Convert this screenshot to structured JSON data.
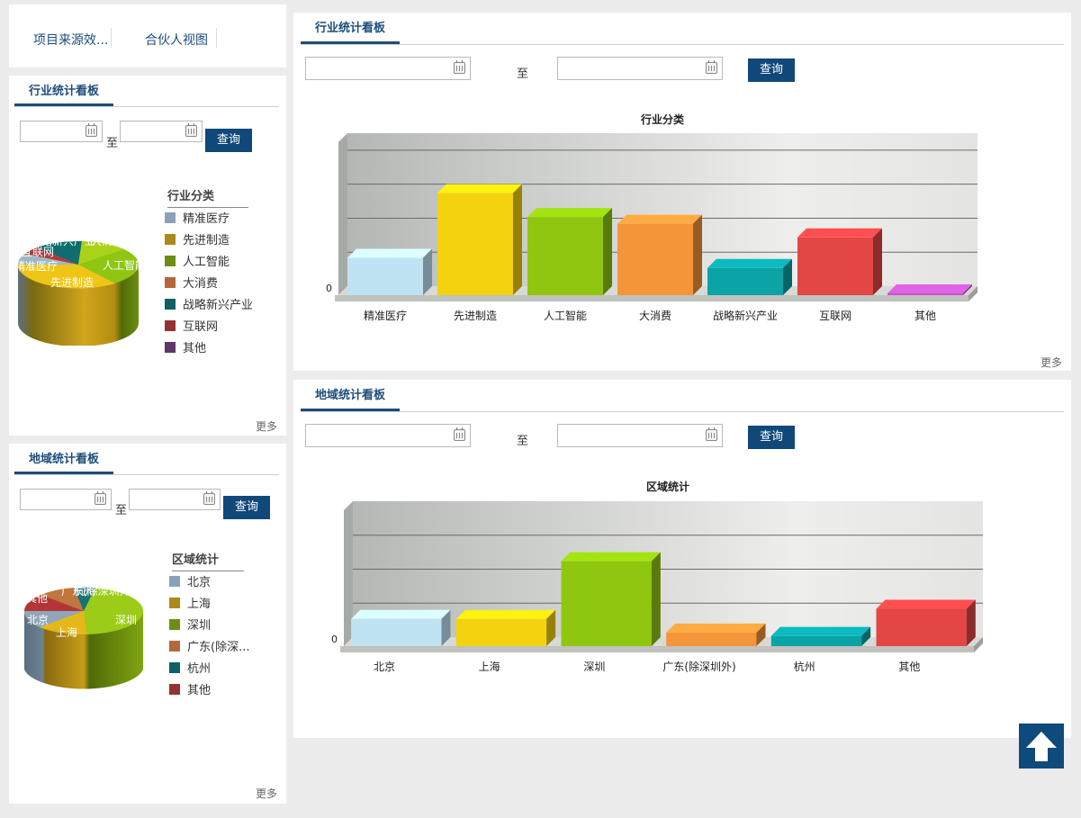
{
  "top_links": [
    "项目来源效...",
    "合伙人视图"
  ],
  "industry_small": {
    "title": "行业统计看板",
    "to_label": "至",
    "query_label": "查询",
    "more_label": "更多",
    "legend_title": "行业分类",
    "legend": [
      {
        "label": "精准医疗",
        "color": "#8aa2b8"
      },
      {
        "label": "先进制造",
        "color": "#ab8a1c"
      },
      {
        "label": "人工智能",
        "color": "#6c8e12"
      },
      {
        "label": "大消费",
        "color": "#b3683c"
      },
      {
        "label": "战略新兴产业",
        "color": "#0e6163"
      },
      {
        "label": "互联网",
        "color": "#953233"
      },
      {
        "label": "其他",
        "color": "#5f3667"
      }
    ],
    "pie_labels": [
      "战略新兴产业",
      "互联网",
      "大消费",
      "精准医疗",
      "人工智能",
      "先进制造"
    ]
  },
  "region_small": {
    "title": "地域统计看板",
    "to_label": "至",
    "query_label": "查询",
    "more_label": "更多",
    "legend_title": "区域统计",
    "legend": [
      {
        "label": "北京",
        "color": "#8aa2b8"
      },
      {
        "label": "上海",
        "color": "#ab8a1c"
      },
      {
        "label": "深圳",
        "color": "#6c8e12"
      },
      {
        "label": "广东(除深...",
        "color": "#b3683c"
      },
      {
        "label": "杭州",
        "color": "#0e6163"
      },
      {
        "label": "其他",
        "color": "#953233"
      }
    ],
    "pie_labels": [
      "其他",
      "广东(除深圳外)",
      "杭州",
      "北京",
      "深圳",
      "上海"
    ]
  },
  "industry_main": {
    "title": "行业统计看板",
    "to_label": "至",
    "query_label": "查询",
    "more_label": "更多"
  },
  "region_main": {
    "title": "地域统计看板",
    "to_label": "至",
    "query_label": "查询"
  },
  "chart_data": [
    {
      "type": "bar",
      "title": "行业分类",
      "categories": [
        "精准医疗",
        "先进制造",
        "人工智能",
        "大消费",
        "战略新兴产业",
        "互联网",
        "其他"
      ],
      "values": [
        11,
        30,
        23,
        21,
        8,
        17,
        0
      ],
      "colors": [
        "#bfe3f3",
        "#f4d20e",
        "#8fc610",
        "#f4953a",
        "#0aa3a6",
        "#e44545",
        "#c355c8"
      ],
      "ytick_zero": "0",
      "ylim": [
        0,
        45
      ]
    },
    {
      "type": "bar",
      "title": "区域统计",
      "categories": [
        "北京",
        "上海",
        "深圳",
        "广东(除深圳外)",
        "杭州",
        "其他"
      ],
      "values": [
        8,
        8,
        25,
        4,
        3,
        11
      ],
      "colors": [
        "#bfe3f3",
        "#f4d20e",
        "#8fc610",
        "#f4953a",
        "#0aa3a6",
        "#e44545"
      ],
      "ytick_zero": "0",
      "ylim": [
        0,
        40
      ]
    }
  ]
}
